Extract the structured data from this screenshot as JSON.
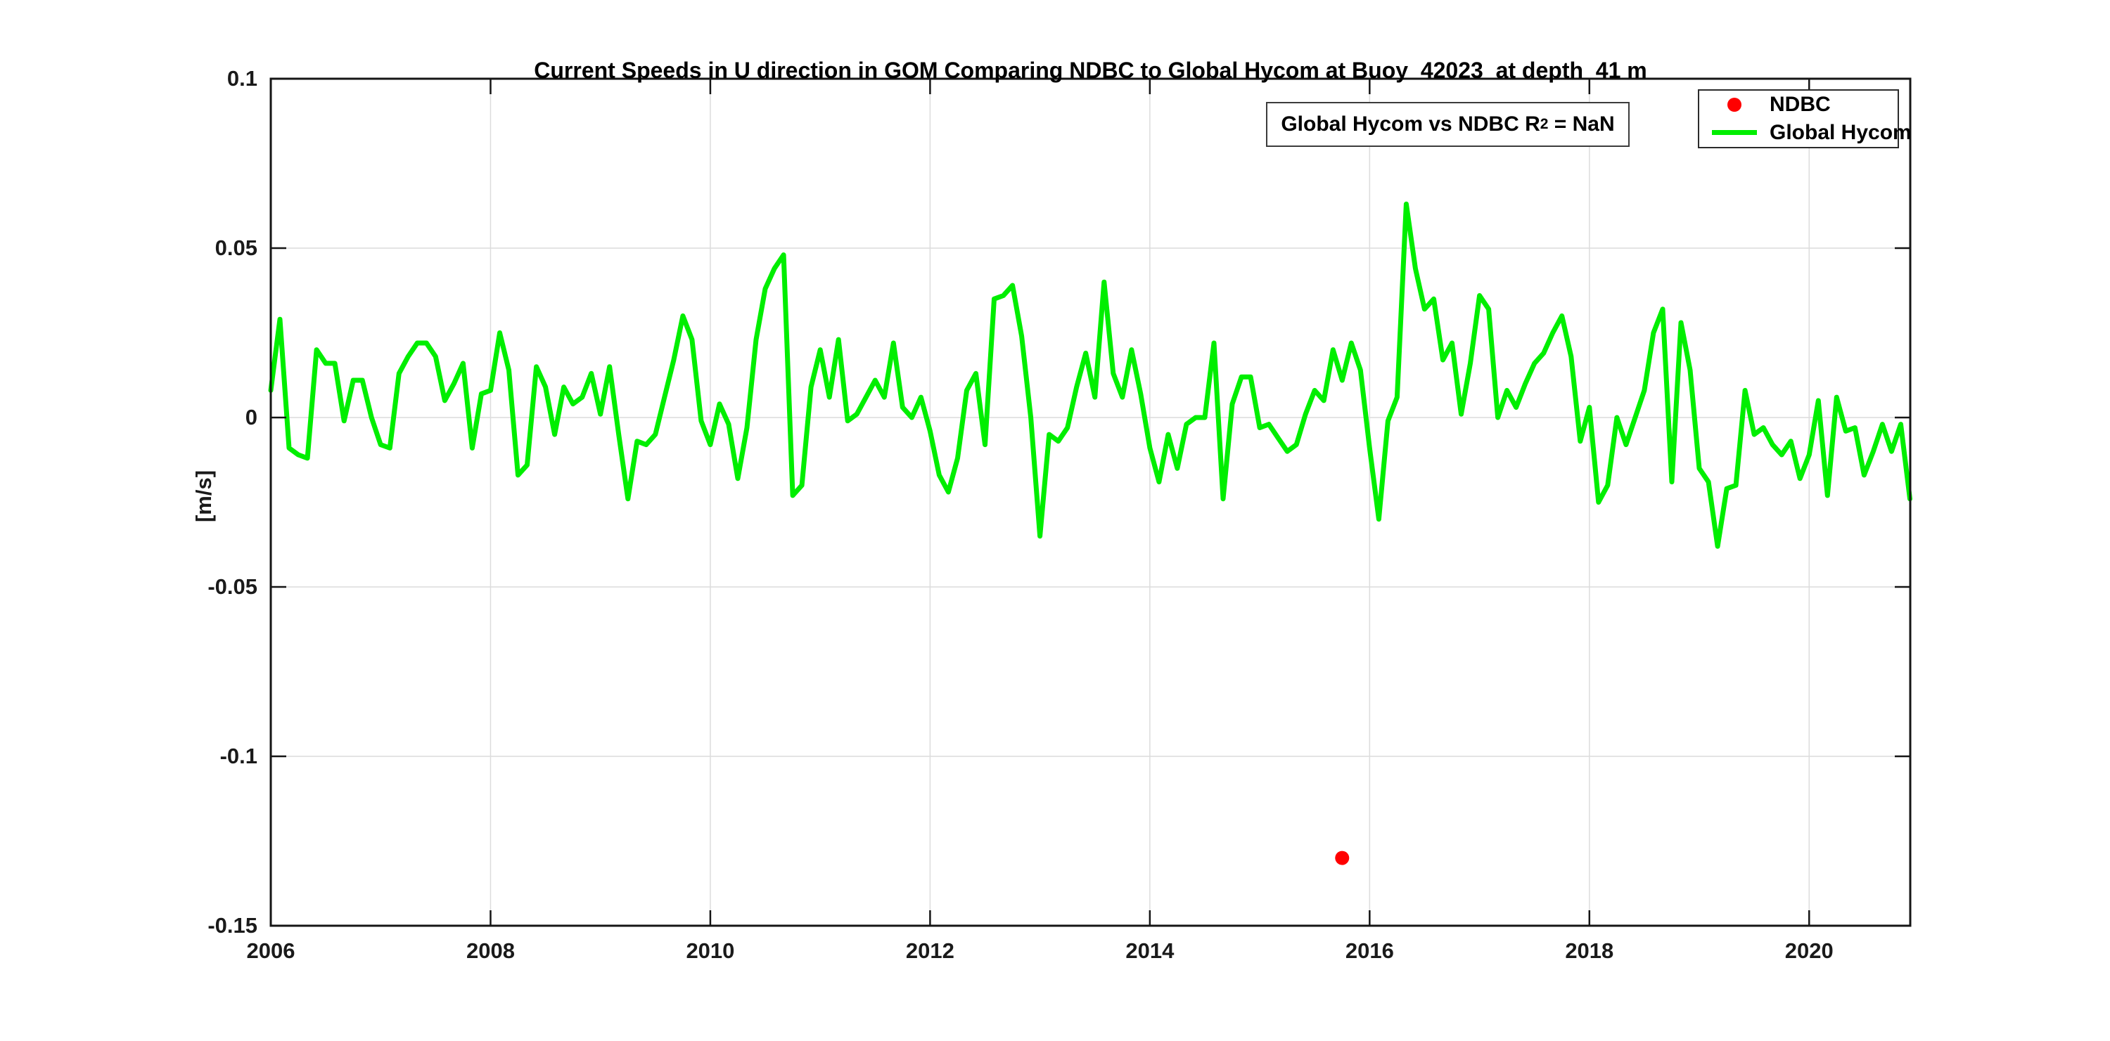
{
  "window": {
    "background": "#ffffff"
  },
  "figure": {
    "title": "Current Speeds in U direction in GOM Comparing NDBC to Global Hycom at Buoy  42023  at depth  41 m"
  },
  "annotation_box": {
    "text_prefix": "Global Hycom vs NDBC R",
    "superscript": "2",
    "text_suffix": " = NaN"
  },
  "legend": {
    "position": "top-right",
    "entries": [
      {
        "label": "NDBC",
        "marker": "red-filled-circle",
        "color": "#ff0000"
      },
      {
        "label": "Global Hycom",
        "marker": "green-line",
        "color": "#00ee00"
      }
    ]
  },
  "axes": {
    "ylabel": "[m/s]",
    "x_tick_labels": [
      "2006",
      "2008",
      "2010",
      "2012",
      "2014",
      "2016",
      "2018",
      "2020"
    ],
    "y_tick_labels": [
      "0.1",
      "0.05",
      "0",
      "-0.05",
      "-0.1",
      "-0.15"
    ],
    "tick_color": "#151515",
    "grid_color": "#dcdcdc",
    "border_color": "#151515"
  },
  "chart_data": {
    "type": "line",
    "title": "Current Speeds in U direction in GOM Comparing NDBC to Global Hycom at Buoy  42023  at depth  41 m",
    "xlabel": "",
    "ylabel": "[m/s]",
    "xlim": [
      2006,
      2020.92
    ],
    "ylim": [
      -0.15,
      0.1
    ],
    "x_ticks": [
      2006,
      2008,
      2010,
      2012,
      2014,
      2016,
      2018,
      2020
    ],
    "y_ticks": [
      0.1,
      0.05,
      0,
      -0.05,
      -0.1,
      -0.15
    ],
    "grid": true,
    "legend_position": "top-right",
    "annotation": "Global Hycom vs NDBC R^2 = NaN",
    "series": [
      {
        "name": "Global Hycom",
        "type": "line",
        "color": "#00ee00",
        "line_width": 7,
        "x_start": 2006.0,
        "x_step": 0.0833333,
        "unit": "m/s",
        "values": [
          0.008,
          0.029,
          -0.009,
          -0.011,
          -0.012,
          0.02,
          0.016,
          0.016,
          -0.001,
          0.011,
          0.011,
          0.0,
          -0.008,
          -0.009,
          0.013,
          0.018,
          0.022,
          0.022,
          0.018,
          0.005,
          0.01,
          0.016,
          -0.009,
          0.007,
          0.008,
          0.025,
          0.014,
          -0.017,
          -0.014,
          0.015,
          0.009,
          -0.005,
          0.009,
          0.004,
          0.006,
          0.013,
          0.001,
          0.015,
          -0.005,
          -0.024,
          -0.007,
          -0.008,
          -0.005,
          0.006,
          0.017,
          0.03,
          0.023,
          -0.001,
          -0.008,
          0.004,
          -0.002,
          -0.018,
          -0.003,
          0.023,
          0.038,
          0.044,
          0.048,
          -0.023,
          -0.02,
          0.009,
          0.02,
          0.006,
          0.023,
          -0.001,
          0.001,
          0.006,
          0.011,
          0.006,
          0.022,
          0.003,
          0.0,
          0.006,
          -0.004,
          -0.017,
          -0.022,
          -0.012,
          0.008,
          0.013,
          -0.008,
          0.035,
          0.036,
          0.039,
          0.024,
          0.0,
          -0.035,
          -0.005,
          -0.007,
          -0.003,
          0.009,
          0.019,
          0.006,
          0.04,
          0.013,
          0.006,
          0.02,
          0.007,
          -0.009,
          -0.019,
          -0.005,
          -0.015,
          -0.002,
          0.0,
          0.0,
          0.022,
          -0.024,
          0.004,
          0.012,
          0.012,
          -0.003,
          -0.002,
          -0.006,
          -0.01,
          -0.008,
          0.001,
          0.008,
          0.005,
          0.02,
          0.011,
          0.022,
          0.014,
          -0.009,
          -0.03,
          -0.001,
          0.006,
          0.063,
          0.044,
          0.032,
          0.035,
          0.017,
          0.022,
          0.001,
          0.016,
          0.036,
          0.032,
          0.0,
          0.008,
          0.003,
          0.01,
          0.016,
          0.019,
          0.025,
          0.03,
          0.018,
          -0.007,
          0.003,
          -0.025,
          -0.02,
          0.0,
          -0.008,
          0.0,
          0.008,
          0.025,
          0.032,
          -0.019,
          0.028,
          0.014,
          -0.015,
          -0.019,
          -0.038,
          -0.021,
          -0.02,
          0.008,
          -0.005,
          -0.003,
          -0.008,
          -0.011,
          -0.007,
          -0.018,
          -0.011,
          0.005,
          -0.023,
          0.006,
          -0.004,
          -0.003,
          -0.017,
          -0.01,
          -0.002,
          -0.01,
          -0.002,
          -0.024
        ]
      },
      {
        "name": "NDBC",
        "type": "scatter",
        "color": "#ff0000",
        "marker": "filled-circle",
        "marker_radius": 10,
        "points": [
          [
            2015.75,
            -0.13
          ]
        ]
      }
    ]
  }
}
